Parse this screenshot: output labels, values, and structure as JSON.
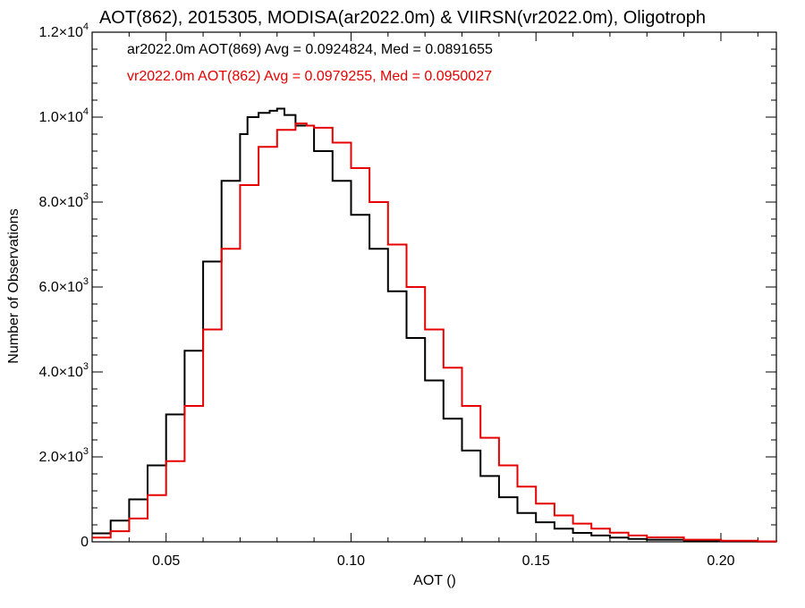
{
  "chart_data": {
    "type": "line",
    "title": "AOT(862), 2015305, MODISA(ar2022.0m) & VIIRSN(vr2022.0m), Oligotroph",
    "xlabel": "AOT ()",
    "ylabel": "Number of Observations",
    "xlim": [
      0.03,
      0.215
    ],
    "ylim": [
      0,
      12000
    ],
    "x_ticks": [
      0.05,
      0.1,
      0.15,
      0.2
    ],
    "x_tick_labels": [
      "0.05",
      "0.10",
      "0.15",
      "0.20"
    ],
    "y_ticks": [
      0,
      2000,
      4000,
      6000,
      8000,
      10000,
      12000
    ],
    "y_tick_labels": [
      {
        "mant": "0",
        "exp": ""
      },
      {
        "mant": "2.0×10",
        "exp": "3"
      },
      {
        "mant": "4.0×10",
        "exp": "3"
      },
      {
        "mant": "6.0×10",
        "exp": "3"
      },
      {
        "mant": "8.0×10",
        "exp": "3"
      },
      {
        "mant": "1.0×10",
        "exp": "4"
      },
      {
        "mant": "1.2×10",
        "exp": "4"
      }
    ],
    "grid": false,
    "legend_position": "top-left",
    "series": [
      {
        "name": "ar2022.0m AOT(869) Avg = 0.0924824, Med = 0.0891655",
        "color": "#000000",
        "x": [
          0.03,
          0.035,
          0.04,
          0.045,
          0.05,
          0.055,
          0.06,
          0.065,
          0.07,
          0.072,
          0.075,
          0.078,
          0.08,
          0.082,
          0.085,
          0.09,
          0.095,
          0.1,
          0.105,
          0.11,
          0.115,
          0.12,
          0.125,
          0.13,
          0.135,
          0.14,
          0.145,
          0.15,
          0.155,
          0.16,
          0.165,
          0.17,
          0.175,
          0.18,
          0.19,
          0.2,
          0.21,
          0.215
        ],
        "values": [
          200,
          500,
          1000,
          1800,
          3000,
          4500,
          6600,
          8500,
          9600,
          10000,
          10100,
          10150,
          10200,
          10050,
          9800,
          9200,
          8500,
          7700,
          6900,
          5900,
          4800,
          3800,
          2900,
          2150,
          1550,
          1050,
          680,
          460,
          310,
          210,
          150,
          100,
          70,
          50,
          25,
          12,
          5,
          3
        ]
      },
      {
        "name": "vr2022.0m AOT(862) Avg = 0.0979255, Med = 0.0950027",
        "color": "#e60000",
        "x": [
          0.03,
          0.035,
          0.04,
          0.045,
          0.05,
          0.055,
          0.06,
          0.065,
          0.07,
          0.075,
          0.08,
          0.085,
          0.088,
          0.09,
          0.095,
          0.1,
          0.105,
          0.11,
          0.115,
          0.12,
          0.125,
          0.13,
          0.135,
          0.14,
          0.145,
          0.15,
          0.155,
          0.16,
          0.165,
          0.17,
          0.175,
          0.18,
          0.19,
          0.2,
          0.21,
          0.215
        ],
        "values": [
          100,
          250,
          550,
          1100,
          1900,
          3200,
          5000,
          6900,
          8400,
          9300,
          9700,
          9850,
          9800,
          9750,
          9400,
          8800,
          8000,
          7000,
          6000,
          5000,
          4100,
          3200,
          2450,
          1800,
          1300,
          900,
          620,
          430,
          310,
          215,
          150,
          105,
          50,
          25,
          10,
          5
        ]
      }
    ]
  }
}
